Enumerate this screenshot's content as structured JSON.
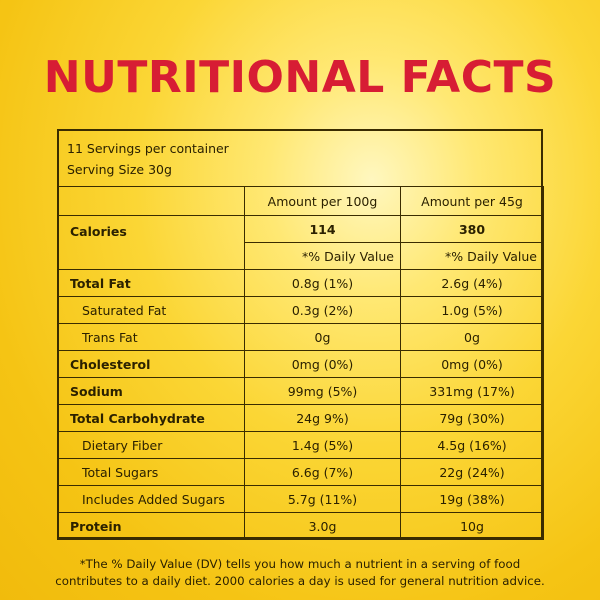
{
  "title": "NUTRITIONAL FACTS",
  "servings_per_container": "11 Servings per container",
  "serving_size": "Serving Size 30g",
  "columns": {
    "col1": "Amount per 100g",
    "col2": "Amount per 45g"
  },
  "calories": {
    "label": "Calories",
    "col1": "114",
    "col2": "380"
  },
  "daily_value_header": {
    "col1": "*% Daily Value",
    "col2": "*% Daily Value"
  },
  "rows": [
    {
      "name": "Total Fat",
      "col1": "0.8g (1%)",
      "col2": "2.6g (4%)"
    },
    {
      "name": "Saturated Fat",
      "col1": "0.3g (2%)",
      "col2": "1.0g (5%)"
    },
    {
      "name": "Trans Fat",
      "col1": "0g",
      "col2": "0g"
    },
    {
      "name": "Cholesterol",
      "col1": "0mg (0%)",
      "col2": "0mg (0%)"
    },
    {
      "name": "Sodium",
      "col1": "99mg (5%)",
      "col2": "331mg (17%)"
    },
    {
      "name": "Total Carbohydrate",
      "col1": "24g 9%)",
      "col2": "79g (30%)"
    },
    {
      "name": "Dietary Fiber",
      "col1": "1.4g (5%)",
      "col2": "4.5g (16%)"
    },
    {
      "name": "Total Sugars",
      "col1": "6.6g (7%)",
      "col2": "22g (24%)"
    },
    {
      "name": "Includes Added Sugars",
      "col1": "5.7g (11%)",
      "col2": "19g (38%)"
    },
    {
      "name": "Protein",
      "col1": "3.0g",
      "col2": "10g"
    }
  ],
  "footnote": {
    "line1": "*The % Daily Value (DV) tells you how much a nutrient in a serving of food",
    "line2": "contributes to a daily diet. 2000 calories a day is used for general nutrition advice."
  },
  "colors": {
    "title": "#d71d34",
    "background": "#f7cd22",
    "border": "#3a2c00"
  }
}
